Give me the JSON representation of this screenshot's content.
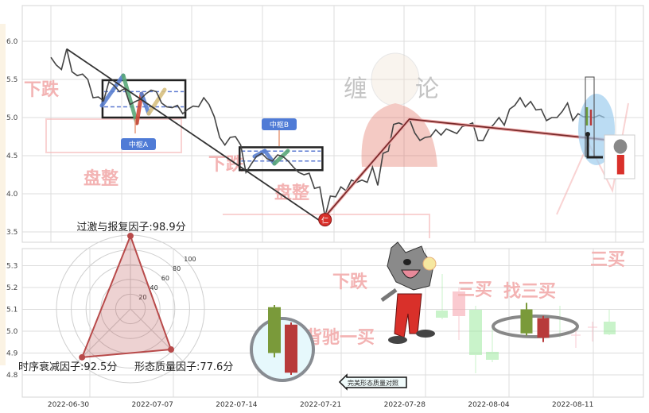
{
  "chart_data": [
    {
      "type": "line",
      "title": "",
      "ylim": [
        3.4,
        6.4
      ],
      "yticks": [
        "6.0",
        "5.5",
        "5.0",
        "4.5",
        "4.0",
        "3.5"
      ],
      "grid": true,
      "series": [
        {
          "values": [
            5.79,
            5.69,
            5.63,
            5.9,
            5.6,
            5.55,
            5.57,
            5.5,
            5.26,
            5.27,
            5.22,
            5.47,
            5.42,
            5.34,
            5.38,
            5.17,
            5.21,
            5.24,
            5.31,
            5.36,
            5.34,
            5.19,
            5.14,
            5.13,
            5.16,
            5.05,
            5.11,
            5.15,
            5.14,
            5.26,
            5.17,
            5.01,
            4.74,
            4.64,
            4.74,
            4.75,
            4.64,
            4.28,
            4.39,
            4.49,
            4.53,
            4.46,
            4.43,
            4.51,
            4.49,
            4.43,
            4.35,
            4.28,
            4.25,
            4.27,
            4.07,
            4.09,
            3.7,
            3.97,
            3.96,
            4.09,
            4.04,
            4.18,
            4.15,
            4.18,
            4.15,
            4.35,
            4.11,
            4.53,
            4.56,
            4.91,
            4.93,
            4.9,
            4.98,
            4.8,
            4.7,
            4.74,
            4.75,
            4.84,
            4.77,
            4.85,
            4.82,
            4.79,
            4.88,
            4.9,
            4.93,
            4.7,
            4.7,
            4.84,
            4.91,
            5.0,
            4.9,
            5.11,
            5.16,
            5.26,
            5.14,
            5.21,
            5.1,
            5.11,
            4.96,
            5.0,
            5.0,
            5.08,
            5.19,
            4.96,
            5.05,
            5.01,
            5.01,
            5.0,
            5.03,
            5.0
          ],
          "color": "#444444"
        }
      ],
      "trend_lines": [
        {
          "points": [
            [
              3,
              5.9
            ],
            [
              52,
              3.6
            ]
          ],
          "color": "#333333"
        },
        {
          "points": [
            [
              52,
              3.7
            ],
            [
              68,
              4.98
            ],
            [
              105,
              4.71
            ]
          ],
          "color": "#7a2a2a"
        }
      ],
      "zhongshu": [
        {
          "label": "中枢A",
          "upper": 5.49,
          "lower": 5.0,
          "dash_upper": 5.34,
          "dash_lower": 5.14,
          "from": 11,
          "to": 24
        },
        {
          "label": "中枢B",
          "upper": 4.61,
          "lower": 4.31,
          "dash_upper": 4.56,
          "dash_lower": 4.43,
          "from": 37,
          "to": 50
        }
      ],
      "low_marker": {
        "index": 52,
        "value": 3.66,
        "label": "仁",
        "color": "#d9302a"
      },
      "watermarks": [
        "下跌",
        "盘整",
        "下跌",
        "盘整",
        "缠",
        "论"
      ]
    },
    {
      "type": "candlestick",
      "ylim": [
        4.72,
        5.36
      ],
      "yticks": [
        "5.3",
        "5.2",
        "5.1",
        "5.0",
        "4.9",
        "4.8"
      ],
      "xticks": [
        "2022-06-30",
        "2022-07-07",
        "2022-07-14",
        "2022-07-21",
        "2022-07-28",
        "2022-08-04",
        "2022-08-11"
      ],
      "grid": true,
      "highlight_candles": [
        {
          "open": 4.9,
          "close": 5.11,
          "high": 5.12,
          "low": 4.88,
          "color": "#7a9a3a"
        },
        {
          "open": 5.03,
          "close": 4.81,
          "high": 5.04,
          "low": 4.8,
          "color": "#b83a3a"
        },
        {
          "open": 5.1,
          "close": 4.99,
          "high": 5.13,
          "low": 4.98,
          "color": "#7a9a3a"
        },
        {
          "open": 5.06,
          "close": 4.97,
          "high": 5.07,
          "low": 4.95,
          "color": "#b83a3a"
        }
      ],
      "watermarks": [
        "下跌",
        "背驰一买",
        "三买",
        "找三买",
        "三买"
      ],
      "callout": "完美形态质量对照"
    },
    {
      "type": "radar",
      "rlim": [
        0,
        100
      ],
      "ring_ticks": [
        "20",
        "40",
        "60",
        "80",
        "100"
      ],
      "axes": [
        {
          "label": "过激与报复因子:98.9分",
          "value": 98.9
        },
        {
          "label": "时序衰减因子:92.5分",
          "value": 92.5
        },
        {
          "label": "形态质量因子:77.6分",
          "value": 77.6
        }
      ],
      "color": "#b84a4a"
    }
  ]
}
